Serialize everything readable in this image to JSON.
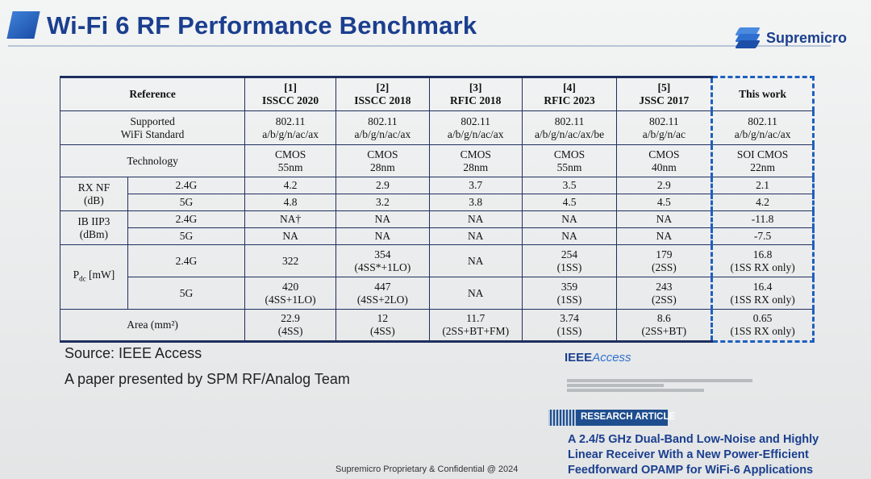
{
  "slide": {
    "title": "Wi-Fi 6 RF Performance Benchmark",
    "brand": "Supremicro",
    "source": "Source: IEEE Access",
    "presenter": "A paper presented by SPM RF/Analog Team",
    "footer": "Supremicro Proprietary & Confidential @ 2024"
  },
  "table": {
    "header": {
      "reference": "Reference",
      "refs": [
        {
          "num": "[1]",
          "name": "ISSCC 2020"
        },
        {
          "num": "[2]",
          "name": "ISSCC 2018"
        },
        {
          "num": "[3]",
          "name": "RFIC 2018"
        },
        {
          "num": "[4]",
          "name": "RFIC 2023"
        },
        {
          "num": "[5]",
          "name": "JSSC 2017"
        }
      ],
      "thiswork": "This work"
    },
    "standard": {
      "label1": "Supported",
      "label2": "WiFi Standard",
      "values": [
        [
          "802.11",
          "a/b/g/n/ac/ax"
        ],
        [
          "802.11",
          "a/b/g/n/ac/ax"
        ],
        [
          "802.11",
          "a/b/g/n/ac/ax"
        ],
        [
          "802.11",
          "a/b/g/n/ac/ax/be"
        ],
        [
          "802.11",
          "a/b/g/n/ac"
        ],
        [
          "802.11",
          "a/b/g/n/ac/ax"
        ]
      ]
    },
    "technology": {
      "label": "Technology",
      "values": [
        [
          "CMOS",
          "55nm"
        ],
        [
          "CMOS",
          "28nm"
        ],
        [
          "CMOS",
          "28nm"
        ],
        [
          "CMOS",
          "55nm"
        ],
        [
          "CMOS",
          "40nm"
        ],
        [
          "SOI CMOS",
          "22nm"
        ]
      ]
    },
    "rxnf": {
      "label1": "RX NF",
      "label2": "(dB)",
      "band24": "2.4G",
      "band5": "5G",
      "v24": [
        "4.2",
        "2.9",
        "3.7",
        "3.5",
        "2.9",
        "2.1"
      ],
      "v5": [
        "4.8",
        "3.2",
        "3.8",
        "4.5",
        "4.5",
        "4.2"
      ]
    },
    "iip3": {
      "label1": "IB IIP3",
      "label2": "(dBm)",
      "band24": "2.4G",
      "band5": "5G",
      "v24": [
        "NA†",
        "NA",
        "NA",
        "NA",
        "NA",
        "-11.8"
      ],
      "v5": [
        "NA",
        "NA",
        "NA",
        "NA",
        "NA",
        "-7.5"
      ]
    },
    "pdc": {
      "label_main": "P",
      "label_sub": "dc",
      "label_unit": " [mW]",
      "band24": "2.4G",
      "band5": "5G",
      "v24": [
        [
          "322",
          ""
        ],
        [
          "354",
          "(4SS*+1LO)"
        ],
        [
          "NA",
          ""
        ],
        [
          "254",
          "(1SS)"
        ],
        [
          "179",
          "(2SS)"
        ],
        [
          "16.8",
          "(1SS RX only)"
        ]
      ],
      "v5": [
        [
          "420",
          "(4SS+1LO)"
        ],
        [
          "447",
          "(4SS+2LO)"
        ],
        [
          "NA",
          ""
        ],
        [
          "359",
          "(1SS)"
        ],
        [
          "243",
          "(2SS)"
        ],
        [
          "16.4",
          "(1SS RX only)"
        ]
      ]
    },
    "area": {
      "label": "Area (mm²)",
      "values": [
        [
          "22.9",
          "(4SS)"
        ],
        [
          "12",
          "(4SS)"
        ],
        [
          "11.7",
          "(2SS+BT+FM)"
        ],
        [
          "3.74",
          "(1SS)"
        ],
        [
          "8.6",
          "(2SS+BT)"
        ],
        [
          "0.65",
          "(1SS RX only)"
        ]
      ]
    }
  },
  "ieee": {
    "logo_main": "IEEE",
    "logo_italic": "Access",
    "research_label": "RESEARCH ARTICLE",
    "article_line1": "A 2.4/5 GHz Dual-Band Low-Noise and Highly",
    "article_line2": "Linear Receiver With a New Power-Efficient",
    "article_line3": "Feedforward OPAMP for WiFi-6 Applications"
  },
  "colors": {
    "title": "#1b3f8f",
    "table_border": "#1e2f5e",
    "highlight_dash": "#1f5fbf"
  }
}
